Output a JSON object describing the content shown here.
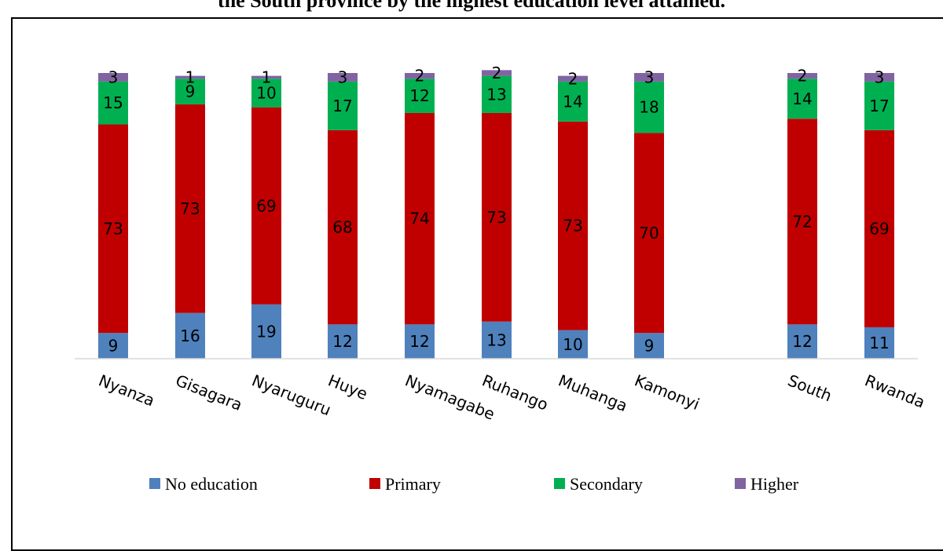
{
  "title": "the South province by the highest education level attained.",
  "chart_data": {
    "type": "bar",
    "stacked": true,
    "categories": [
      "Nyanza",
      "Gisagara",
      "Nyaruguru",
      "Huye",
      "Nyamagabe",
      "Ruhango",
      "Muhanga",
      "Kamonyi",
      "South",
      "Rwanda"
    ],
    "series": [
      {
        "name": "No education",
        "color": "#4F81BD",
        "values": [
          9,
          16,
          19,
          12,
          12,
          13,
          10,
          9,
          12,
          11
        ]
      },
      {
        "name": "Primary",
        "color": "#C00000",
        "values": [
          73,
          73,
          69,
          68,
          74,
          73,
          73,
          70,
          72,
          69
        ]
      },
      {
        "name": "Secondary",
        "color": "#00B050",
        "values": [
          15,
          9,
          10,
          17,
          12,
          13,
          14,
          18,
          14,
          17
        ]
      },
      {
        "name": "Higher",
        "color": "#8064A2",
        "values": [
          3,
          1,
          1,
          3,
          2,
          2,
          2,
          3,
          2,
          3
        ]
      }
    ],
    "ylim": [
      0,
      100
    ],
    "grid": false,
    "legend_position": "bottom"
  }
}
